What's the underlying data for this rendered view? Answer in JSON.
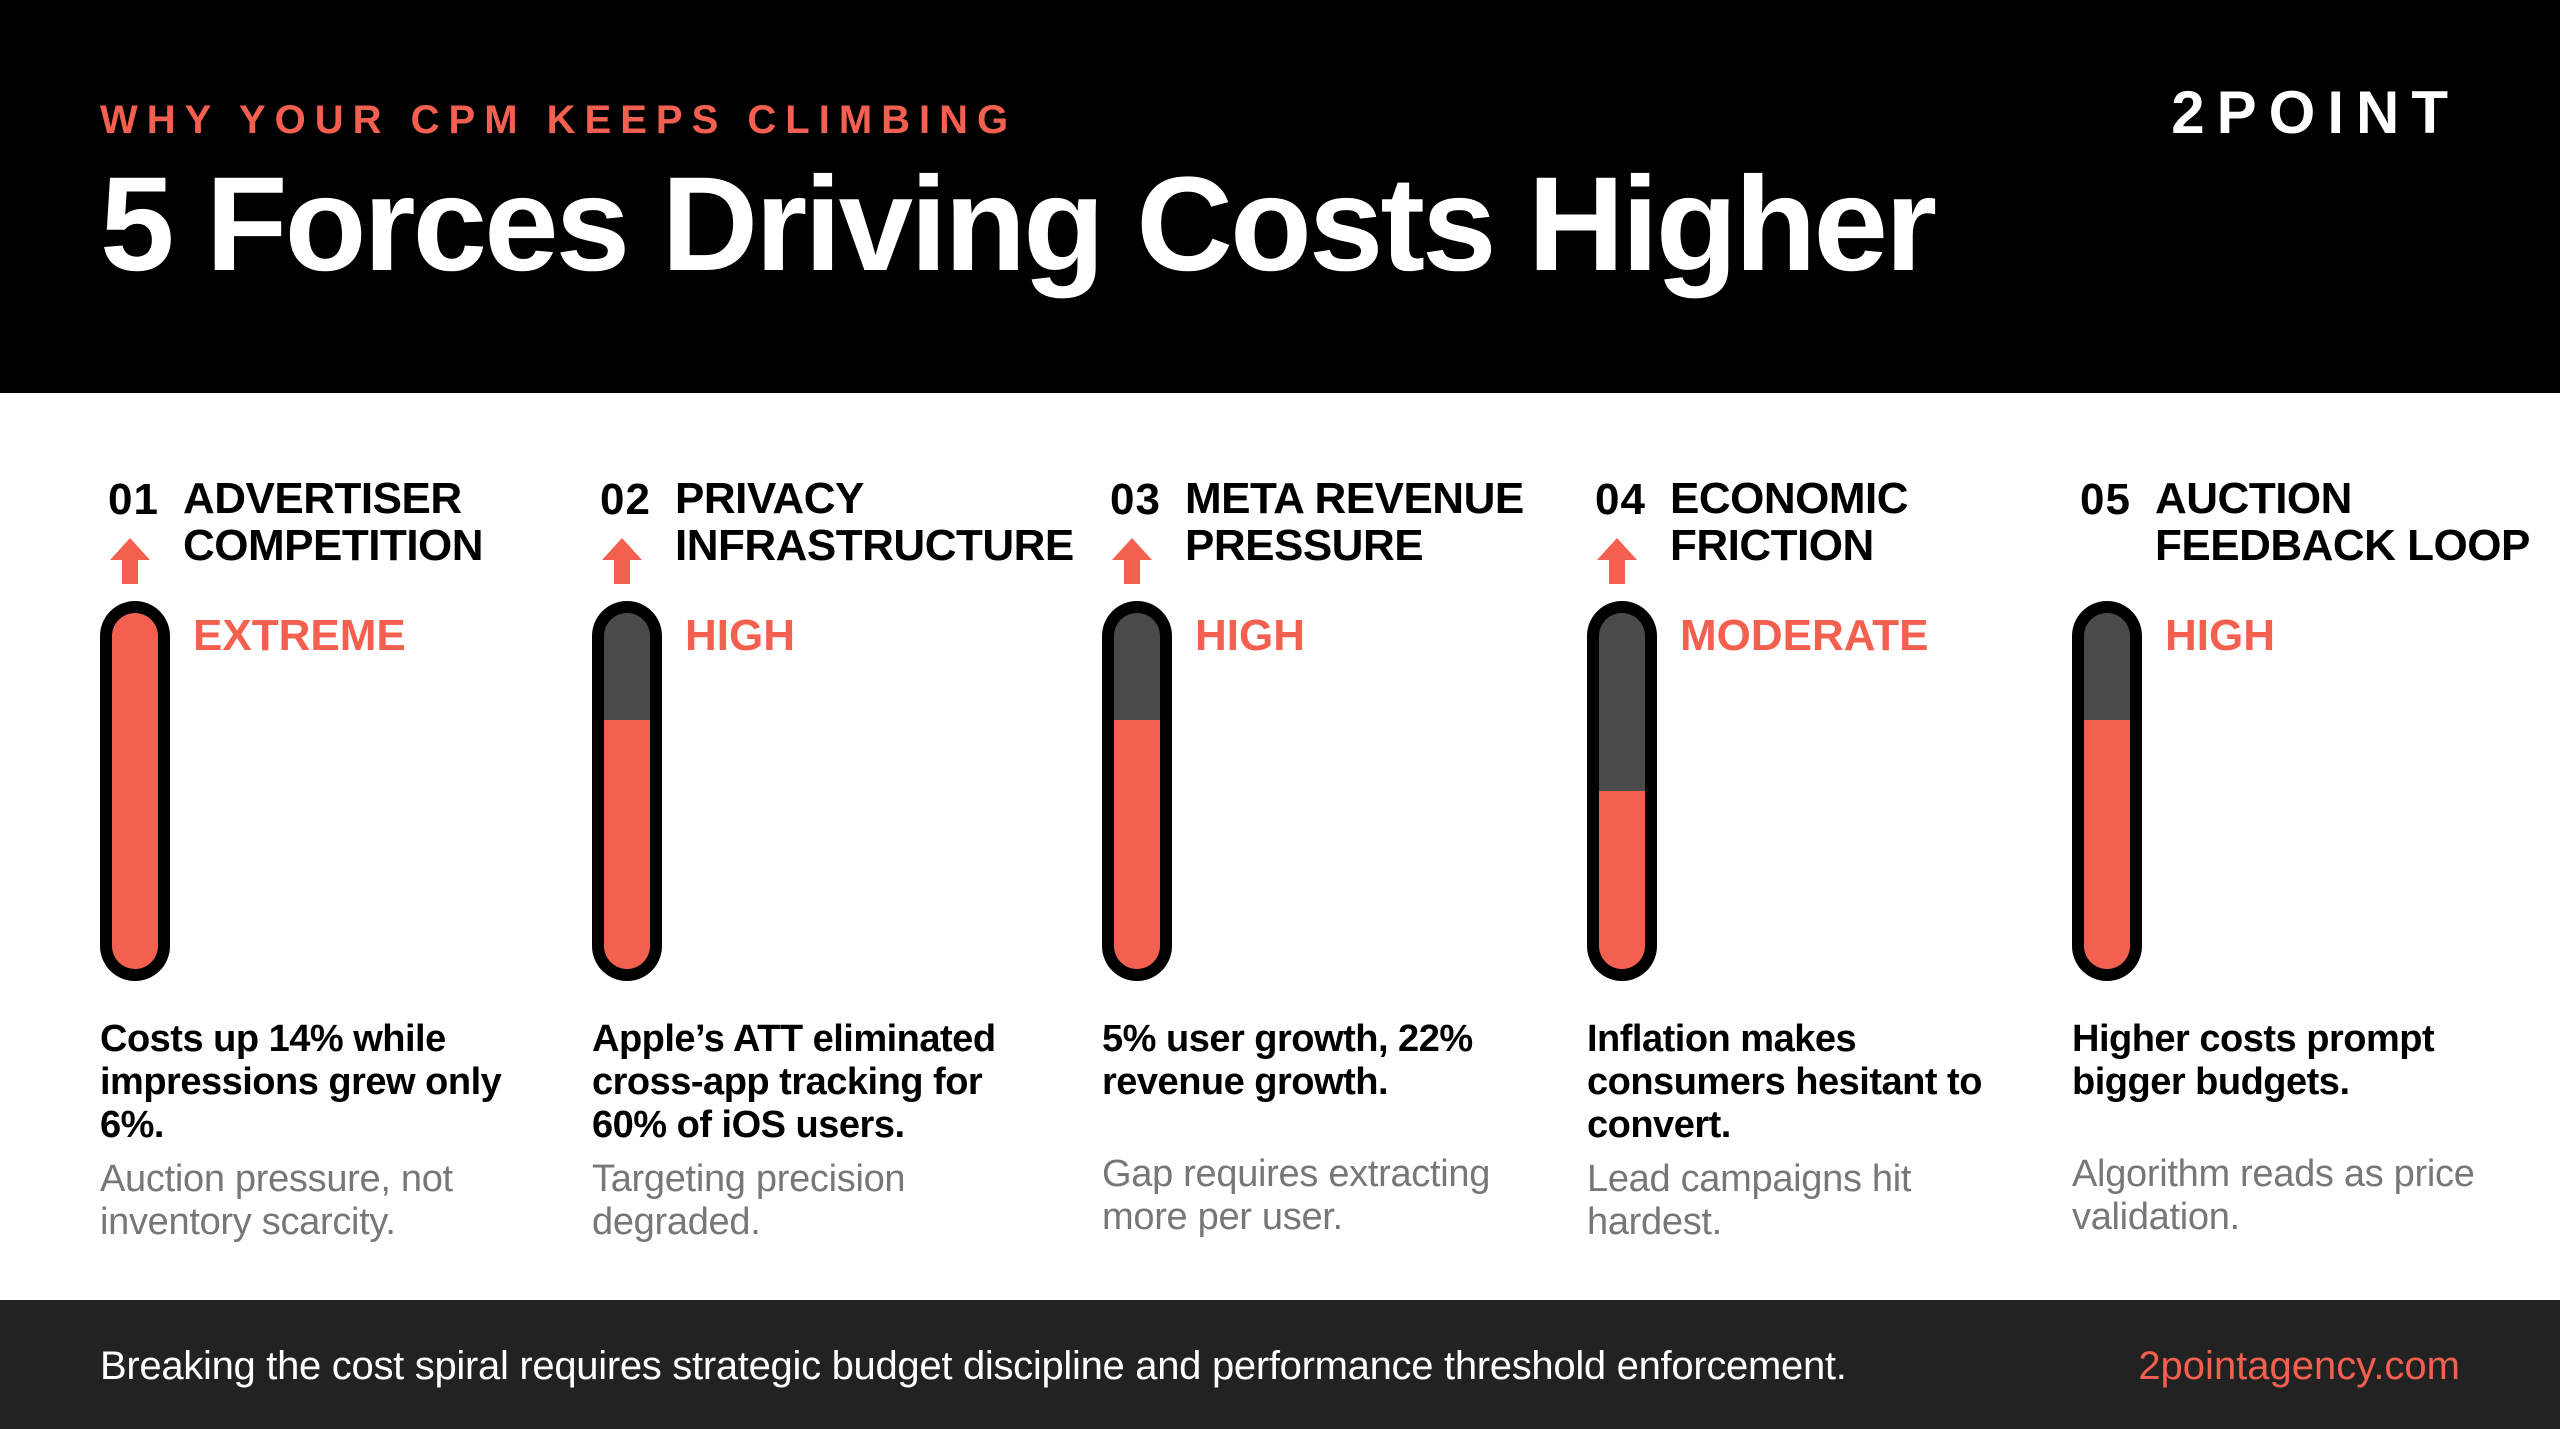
{
  "header": {
    "eyebrow": "WHY YOUR CPM KEEPS CLIMBING",
    "title": "5 Forces Driving Costs Higher",
    "logo": "2POINT"
  },
  "colors": {
    "accent": "#f4604f",
    "header_bg": "#000000",
    "footer_bg": "#222222",
    "gauge_track": "#4a4a4a"
  },
  "forces": [
    {
      "number": "01",
      "title": "ADVERTISER\nCOMPETITION",
      "level": "EXTREME",
      "level_fraction": 1.0,
      "has_arrow": true,
      "stat": "Costs up 14% while impressions grew only 6%.",
      "note": "Auction pressure, not inventory scarcity."
    },
    {
      "number": "02",
      "title": "PRIVACY\nINFRASTRUCTURE",
      "level": "HIGH",
      "level_fraction": 0.7,
      "has_arrow": true,
      "stat": "Apple’s ATT eliminated cross-app tracking for 60% of iOS users.",
      "note": "Targeting precision degraded."
    },
    {
      "number": "03",
      "title": "META REVENUE\nPRESSURE",
      "level": "HIGH",
      "level_fraction": 0.7,
      "has_arrow": true,
      "stat": "5% user growth, 22% revenue growth.",
      "note": "Gap requires extracting more per user."
    },
    {
      "number": "04",
      "title": "ECONOMIC\nFRICTION",
      "level": "MODERATE",
      "level_fraction": 0.5,
      "has_arrow": true,
      "stat": "Inflation makes consumers hesitant to convert.",
      "note": "Lead campaigns hit hardest."
    },
    {
      "number": "05",
      "title": "AUCTION\nFEEDBACK LOOP",
      "level": "HIGH",
      "level_fraction": 0.7,
      "has_arrow": false,
      "stat": "Higher costs prompt bigger budgets.",
      "note": "Algorithm reads as price validation."
    }
  ],
  "footer": {
    "text": "Breaking the cost spiral requires strategic budget discipline and performance threshold enforcement.",
    "link": "2pointagency.com"
  }
}
